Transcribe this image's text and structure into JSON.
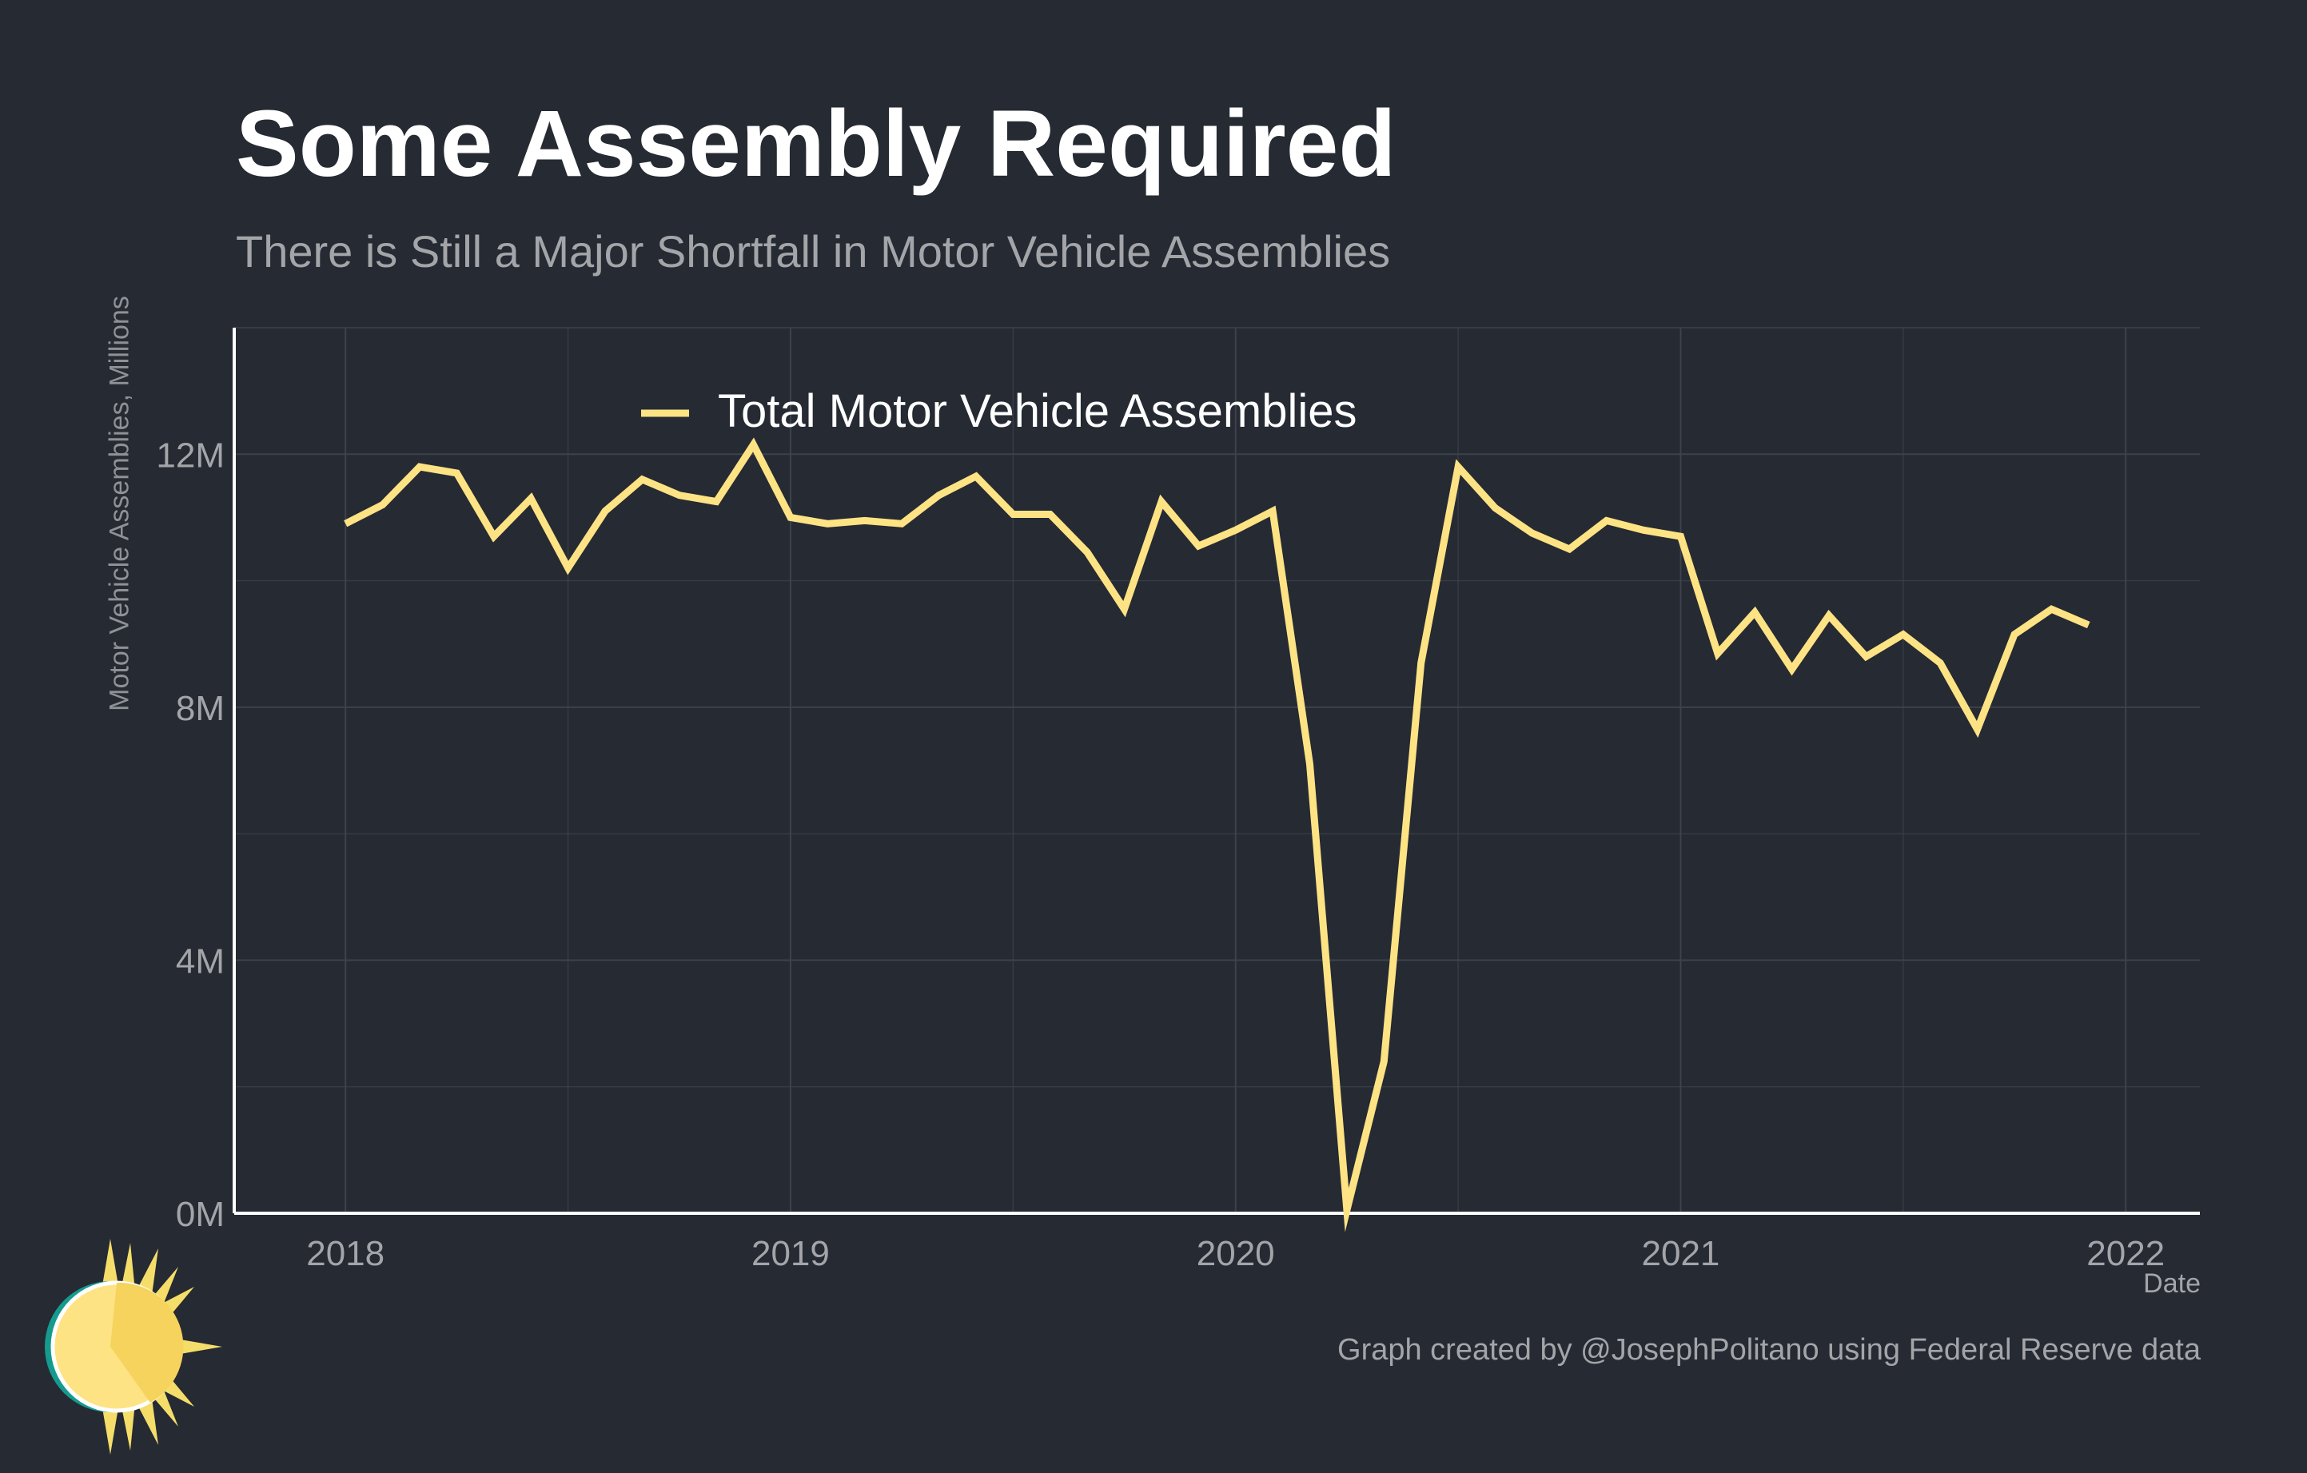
{
  "title": "Some Assembly Required",
  "subtitle": "There is Still a Major Shortfall in Motor Vehicle Assemblies",
  "caption": "Graph created by @JosephPolitano using Federal Reserve data",
  "logo_icon": "sun-icon",
  "colors": {
    "background": "#252a33",
    "line": "#fde384",
    "grid": "#3d424b",
    "axis": "#ffffff"
  },
  "chart_data": {
    "type": "line",
    "xlabel": "Date",
    "ylabel": "Motor Vehicle Assemblies, Millions",
    "x_ticks": [
      "2018",
      "2019",
      "2020",
      "2021",
      "2022"
    ],
    "y_ticks": [
      "0M",
      "4M",
      "8M",
      "12M"
    ],
    "ylim": [
      0,
      14
    ],
    "xlim": [
      "2017-10",
      "2022-03"
    ],
    "grid": true,
    "legend_position": "top",
    "series": [
      {
        "name": "Total Motor Vehicle Assemblies",
        "x": [
          "2018-01",
          "2018-02",
          "2018-03",
          "2018-04",
          "2018-05",
          "2018-06",
          "2018-07",
          "2018-08",
          "2018-09",
          "2018-10",
          "2018-11",
          "2018-12",
          "2019-01",
          "2019-02",
          "2019-03",
          "2019-04",
          "2019-05",
          "2019-06",
          "2019-07",
          "2019-08",
          "2019-09",
          "2019-10",
          "2019-11",
          "2019-12",
          "2020-01",
          "2020-02",
          "2020-03",
          "2020-04",
          "2020-05",
          "2020-06",
          "2020-07",
          "2020-08",
          "2020-09",
          "2020-10",
          "2020-11",
          "2020-12",
          "2021-01",
          "2021-02",
          "2021-03",
          "2021-04",
          "2021-05",
          "2021-06",
          "2021-07",
          "2021-08",
          "2021-09",
          "2021-10",
          "2021-11",
          "2021-12"
        ],
        "values": [
          10.9,
          11.2,
          11.8,
          11.7,
          10.7,
          11.3,
          10.2,
          11.1,
          11.6,
          11.35,
          11.25,
          12.15,
          11.0,
          10.9,
          10.95,
          10.9,
          11.35,
          11.65,
          11.05,
          11.05,
          10.45,
          9.55,
          11.25,
          10.55,
          10.8,
          11.1,
          7.1,
          0.05,
          2.4,
          8.7,
          11.8,
          11.15,
          10.75,
          10.5,
          10.95,
          10.8,
          10.7,
          8.85,
          9.5,
          8.6,
          9.45,
          8.8,
          9.15,
          8.7,
          7.65,
          9.15,
          9.55,
          9.3
        ]
      }
    ]
  }
}
